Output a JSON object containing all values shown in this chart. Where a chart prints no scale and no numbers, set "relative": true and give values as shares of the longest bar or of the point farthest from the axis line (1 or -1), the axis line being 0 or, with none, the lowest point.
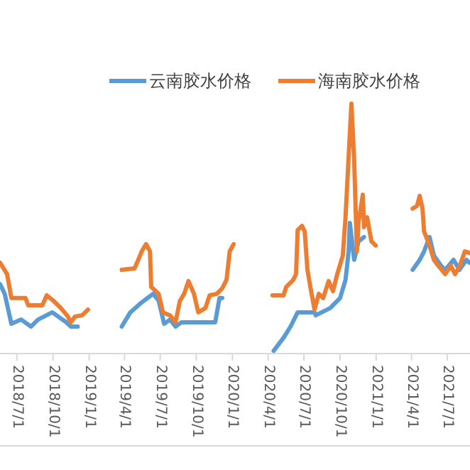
{
  "chart_data": {
    "type": "line",
    "relative": true,
    "legend": "top",
    "xlim": [
      "2018-05-19",
      "2021-08-28"
    ],
    "xticks": [
      {
        "value": "2018-07-01",
        "label": "2018/7/1"
      },
      {
        "value": "2018-10-01",
        "label": "2018/10/1"
      },
      {
        "value": "2019-01-01",
        "label": "2019/1/1"
      },
      {
        "value": "2019-04-01",
        "label": "2019/4/1"
      },
      {
        "value": "2019-07-01",
        "label": "2019/7/1"
      },
      {
        "value": "2019-10-01",
        "label": "2019/10/1"
      },
      {
        "value": "2020-01-01",
        "label": "2020/1/1"
      },
      {
        "value": "2020-04-01",
        "label": "2020/4/1"
      },
      {
        "value": "2020-07-01",
        "label": "2020/7/1"
      },
      {
        "value": "2020-10-01",
        "label": "2020/10/1"
      },
      {
        "value": "2021-01-01",
        "label": "2021/1/1"
      },
      {
        "value": "2021-04-01",
        "label": "2021/4/1"
      },
      {
        "value": "2021-07-01",
        "label": "2021/7/1"
      }
    ],
    "series": [
      {
        "name": "云南胶水价格",
        "color": "#5b9bd5",
        "x": [
          "2018-05-19",
          "2018-05-31",
          "2018-06-17",
          "2018-07-12",
          "2018-08-06",
          "2018-08-24",
          "2018-09-29",
          "2018-11-04",
          "2018-11-15",
          "2018-12-03",
          "2019-02-15",
          "2019-03-25",
          "2019-04-16",
          "2019-05-15",
          "2019-06-13",
          "2019-06-27",
          "2019-07-11",
          "2019-07-26",
          "2019-08-09",
          "2019-08-24",
          "2019-11-18",
          "2019-11-29",
          "2019-12-06",
          "2020-02-20",
          "2020-04-15",
          "2020-05-10",
          "2020-05-28",
          "2020-06-15",
          "2020-07-28",
          "2020-07-31",
          "2020-09-06",
          "2020-10-01",
          "2020-10-15",
          "2020-10-23",
          "2020-10-26",
          "2020-11-06",
          "2020-11-17",
          "2020-12-01",
          "2021-02-20",
          "2021-04-04",
          "2021-04-22",
          "2021-05-03",
          "2021-05-17",
          "2021-05-28",
          "2021-06-15",
          "2021-06-26",
          "2021-07-17",
          "2021-08-01",
          "2021-08-19",
          "2021-08-26"
        ],
        "values": [
          0.278,
          0.239,
          0.119,
          0.136,
          0.108,
          0.136,
          0.165,
          0.125,
          0.108,
          0.108,
          null,
          0.108,
          0.165,
          0.205,
          0.239,
          0.212,
          0.119,
          0.136,
          0.108,
          0.125,
          0.125,
          0.222,
          0.222,
          null,
          0.011,
          0.063,
          0.108,
          0.165,
          0.165,
          0.153,
          0.182,
          0.222,
          0.295,
          0.409,
          0.523,
          0.375,
          0.449,
          0.466,
          null,
          0.335,
          0.375,
          0.409,
          0.466,
          0.392,
          0.352,
          0.335,
          0.375,
          0.335,
          0.375,
          0.364
        ]
      },
      {
        "name": "海南胶水价格",
        "color": "#ed7d31",
        "x": [
          "2018-05-19",
          "2018-06-06",
          "2018-06-17",
          "2018-07-23",
          "2018-07-30",
          "2018-09-04",
          "2018-09-15",
          "2018-10-03",
          "2018-10-21",
          "2018-11-08",
          "2018-11-15",
          "2018-11-26",
          "2018-12-14",
          "2018-12-29",
          "2019-02-15",
          "2019-03-25",
          "2019-04-27",
          "2019-05-15",
          "2019-05-26",
          "2019-06-05",
          "2019-06-08",
          "2019-06-27",
          "2019-07-08",
          "2019-07-26",
          "2019-08-09",
          "2019-08-20",
          "2019-08-31",
          "2019-09-11",
          "2019-09-25",
          "2019-10-06",
          "2019-10-24",
          "2019-11-04",
          "2019-11-22",
          "2019-12-06",
          "2019-12-17",
          "2019-12-25",
          "2020-01-04",
          "2020-02-20",
          "2020-04-12",
          "2020-05-10",
          "2020-05-17",
          "2020-06-04",
          "2020-06-11",
          "2020-06-15",
          "2020-06-26",
          "2020-07-03",
          "2020-07-10",
          "2020-07-18",
          "2020-07-28",
          "2020-08-08",
          "2020-08-19",
          "2020-09-02",
          "2020-09-13",
          "2020-09-24",
          "2020-10-08",
          "2020-10-15",
          "2020-10-23",
          "2020-10-30",
          "2020-11-06",
          "2020-11-13",
          "2020-11-17",
          "2020-11-28",
          "2020-12-01",
          "2020-12-09",
          "2020-12-20",
          "2020-12-31",
          "2021-02-20",
          "2021-04-04",
          "2021-04-15",
          "2021-04-22",
          "2021-04-29",
          "2021-05-03",
          "2021-05-17",
          "2021-05-28",
          "2021-06-08",
          "2021-06-26",
          "2021-07-10",
          "2021-07-21",
          "2021-08-01",
          "2021-08-15",
          "2021-08-26"
        ],
        "values": [
          0.364,
          0.318,
          0.222,
          0.222,
          0.193,
          0.193,
          0.233,
          0.21,
          0.182,
          0.148,
          0.125,
          0.148,
          0.153,
          0.176,
          null,
          0.335,
          0.341,
          0.409,
          0.438,
          0.409,
          0.267,
          0.239,
          0.165,
          0.153,
          0.125,
          0.21,
          0.239,
          0.29,
          0.239,
          0.165,
          0.182,
          0.233,
          0.239,
          0.261,
          0.295,
          0.409,
          0.438,
          null,
          0.233,
          0.233,
          0.267,
          0.295,
          0.318,
          0.494,
          0.511,
          0.489,
          0.335,
          0.261,
          0.176,
          0.239,
          0.222,
          0.29,
          0.25,
          0.318,
          0.392,
          0.545,
          0.79,
          1.0,
          0.773,
          0.409,
          0.523,
          0.636,
          0.506,
          0.545,
          0.449,
          0.432,
          null,
          0.58,
          0.591,
          0.631,
          0.58,
          0.489,
          0.432,
          0.375,
          0.352,
          0.318,
          0.352,
          0.318,
          0.347,
          0.409,
          0.403
        ]
      }
    ]
  }
}
